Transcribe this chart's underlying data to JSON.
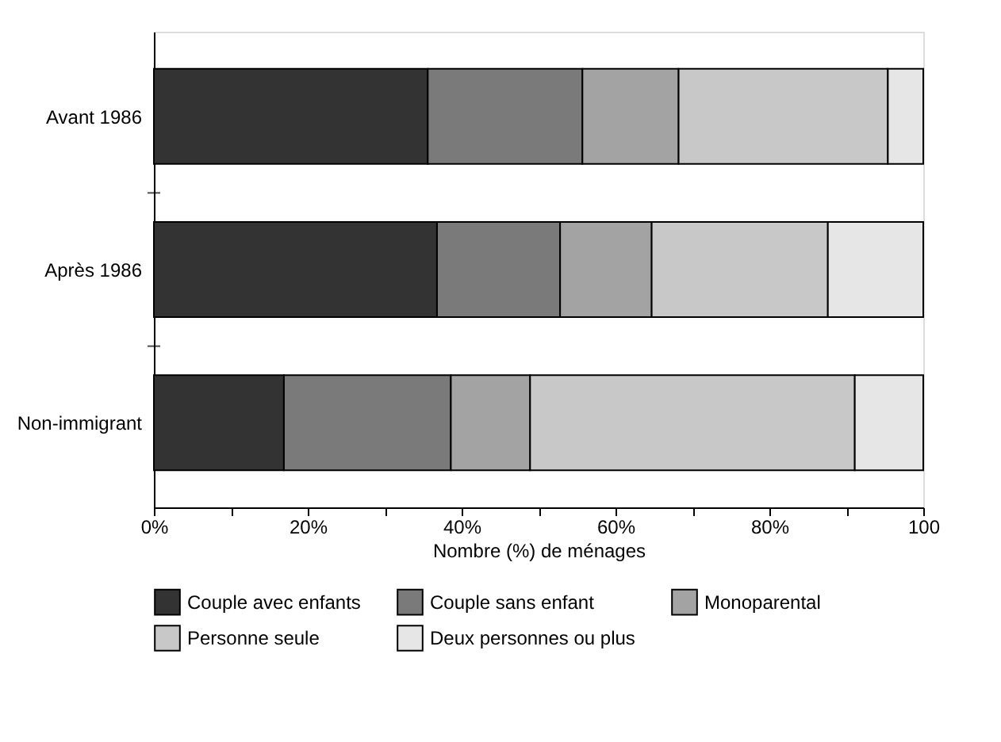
{
  "chart_data": {
    "type": "bar",
    "orientation": "horizontal",
    "stacked": true,
    "categories": [
      "Avant 1986",
      "Après 1986",
      "Non-immigrant"
    ],
    "xlabel": "Nombre (%) de ménages",
    "series": [
      {
        "name": "Couple avec enfants",
        "color": "#333333",
        "values": [
          35.6,
          36.8,
          16.9
        ]
      },
      {
        "name": "Couple sans enfant",
        "color": "#7a7a7a",
        "values": [
          20.1,
          16.0,
          21.7
        ]
      },
      {
        "name": "Monoparental",
        "color": "#a3a3a3",
        "values": [
          12.5,
          11.9,
          10.3
        ]
      },
      {
        "name": "Personne seule",
        "color": "#c8c8c8",
        "values": [
          27.2,
          22.9,
          42.2
        ]
      },
      {
        "name": "Deux personnes ou plus",
        "color": "#e6e6e6",
        "values": [
          4.6,
          12.4,
          8.9
        ]
      }
    ],
    "xlim": [
      0,
      100
    ],
    "xticks": [
      {
        "value": 0,
        "label": "0%"
      },
      {
        "value": 10,
        "label": null
      },
      {
        "value": 20,
        "label": "20%"
      },
      {
        "value": 30,
        "label": null
      },
      {
        "value": 40,
        "label": "40%"
      },
      {
        "value": 50,
        "label": null
      },
      {
        "value": 60,
        "label": "60%"
      },
      {
        "value": 70,
        "label": null
      },
      {
        "value": 80,
        "label": "80%"
      },
      {
        "value": 90,
        "label": null
      },
      {
        "value": 100,
        "label": "100"
      }
    ],
    "grid": false,
    "legend": "bottom"
  }
}
